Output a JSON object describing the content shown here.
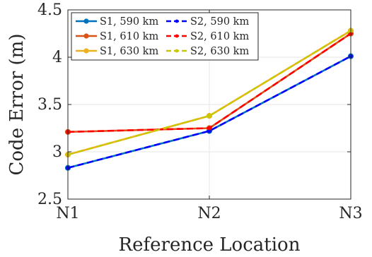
{
  "chart_data": {
    "type": "line",
    "categories": [
      "N1",
      "N2",
      "N3"
    ],
    "xlabel": "Reference Location",
    "ylabel": "Code Error (m)",
    "ylim": [
      2.5,
      4.5
    ],
    "yticks": [
      2.5,
      3,
      3.5,
      4,
      4.5
    ],
    "ytick_labels": [
      "2.5",
      "3",
      "3.5",
      "4",
      "4.5"
    ],
    "grid": true,
    "legend_position": "top-left",
    "series": [
      {
        "name": "S1, 590 km",
        "values": [
          2.83,
          3.22,
          4.01
        ],
        "color": "#0072BD",
        "style": "solid",
        "marker": "circle"
      },
      {
        "name": "S2, 590 km",
        "values": [
          2.83,
          3.22,
          4.01
        ],
        "color": "#0000FF",
        "style": "dashed",
        "marker": "dot"
      },
      {
        "name": "S1, 610 km",
        "values": [
          3.21,
          3.25,
          4.25
        ],
        "color": "#D95319",
        "style": "solid",
        "marker": "circle"
      },
      {
        "name": "S2, 610 km",
        "values": [
          3.21,
          3.25,
          4.25
        ],
        "color": "#FF0000",
        "style": "dashed",
        "marker": "dot"
      },
      {
        "name": "S1, 630 km",
        "values": [
          2.97,
          3.38,
          4.28
        ],
        "color": "#EDB120",
        "style": "solid",
        "marker": "circle"
      },
      {
        "name": "S2, 630 km",
        "values": [
          2.97,
          3.38,
          4.28
        ],
        "color": "#C8C800",
        "style": "dashed",
        "marker": "dot"
      }
    ],
    "legend_order": [
      "S1, 590 km",
      "S2, 590 km",
      "S1, 610 km",
      "S2, 610 km",
      "S1, 630 km",
      "S2, 630 km"
    ]
  }
}
